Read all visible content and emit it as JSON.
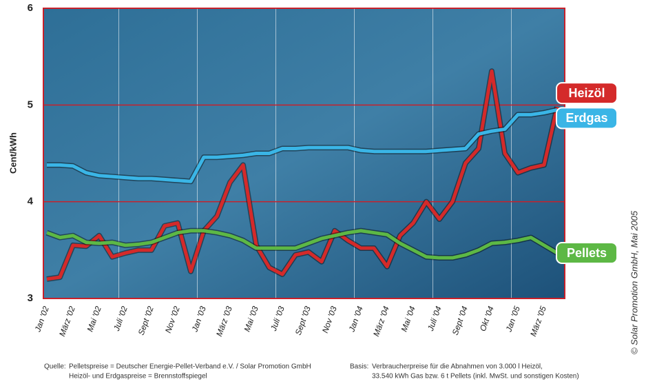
{
  "chart_data": {
    "type": "line",
    "y_label": "Cent/kWh",
    "categories": [
      "Jan '02",
      null,
      "März '02",
      null,
      "Mai '02",
      null,
      "Juli '02",
      null,
      "Sept '02",
      null,
      "Nov '02",
      null,
      "Jan '03",
      null,
      "März '03",
      null,
      "Mai '03",
      null,
      "Juli '03",
      null,
      "Sept '03",
      null,
      "Nov '03",
      null,
      "Jan '04",
      null,
      "März '04",
      null,
      "Mai '04",
      null,
      "Juli '04",
      null,
      "Sept '04",
      null,
      "Okt '04",
      null,
      "Jan '05",
      null,
      "März '05",
      null
    ],
    "series": [
      {
        "name": "Heizöl",
        "color": "#d42a2a",
        "values": [
          3.2,
          3.22,
          3.55,
          3.54,
          3.65,
          3.43,
          3.47,
          3.5,
          3.5,
          3.75,
          3.78,
          3.28,
          3.7,
          3.85,
          4.2,
          4.38,
          3.55,
          3.32,
          3.25,
          3.45,
          3.48,
          3.38,
          3.7,
          3.6,
          3.52,
          3.52,
          3.33,
          3.65,
          3.78,
          4.0,
          3.82,
          4.0,
          4.4,
          4.55,
          5.35,
          4.5,
          4.3,
          4.35,
          4.38,
          4.98
        ]
      },
      {
        "name": "Erdgas",
        "color": "#3ab5e6",
        "values": [
          4.38,
          4.38,
          4.37,
          4.3,
          4.27,
          4.26,
          4.25,
          4.24,
          4.24,
          4.23,
          4.22,
          4.21,
          4.46,
          4.46,
          4.47,
          4.48,
          4.5,
          4.5,
          4.55,
          4.55,
          4.56,
          4.56,
          4.56,
          4.56,
          4.53,
          4.52,
          4.52,
          4.52,
          4.52,
          4.52,
          4.53,
          4.54,
          4.55,
          4.7,
          4.73,
          4.75,
          4.9,
          4.9,
          4.92,
          4.95
        ]
      },
      {
        "name": "Pellets",
        "color": "#5db845",
        "values": [
          3.68,
          3.63,
          3.65,
          3.58,
          3.57,
          3.58,
          3.55,
          3.56,
          3.58,
          3.63,
          3.68,
          3.7,
          3.7,
          3.68,
          3.65,
          3.6,
          3.52,
          3.52,
          3.52,
          3.52,
          3.57,
          3.62,
          3.65,
          3.68,
          3.7,
          3.68,
          3.66,
          3.57,
          3.5,
          3.43,
          3.42,
          3.42,
          3.45,
          3.5,
          3.57,
          3.58,
          3.6,
          3.63,
          3.55,
          3.47
        ]
      }
    ],
    "ylim": [
      3,
      6
    ],
    "yticks": [
      3,
      4,
      5,
      6
    ],
    "grid": true,
    "footnotes": [
      "Quelle:",
      "Pelletspreise = Deutscher Energie-Pellet-Verband e.V. / Solar Promotion GmbH",
      "Heizöl- und Erdgaspreise = Brennstoffspiegel",
      "Basis:",
      "Verbraucherpreise für die Abnahmen von 3.000 l Heizöl,",
      "33.540 kWh Gas bzw. 6 t Pellets (inkl. MwSt. und sonstigen Kosten)"
    ],
    "copyright": "© Solar Promotion GmbH, Mai 2005"
  }
}
